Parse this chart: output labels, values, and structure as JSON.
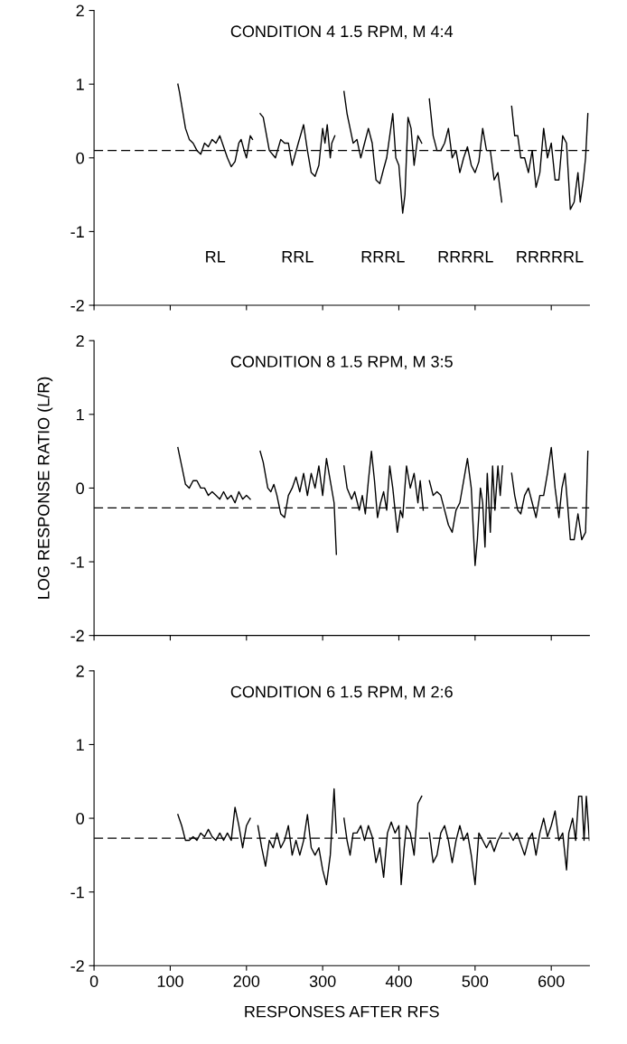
{
  "chart_data": [
    {
      "type": "line",
      "title": "CONDITION 4 1.5 RPM, M 4:4",
      "xlim": [
        0,
        650
      ],
      "ylim": [
        -2,
        2
      ],
      "yticks": [
        -2,
        -1,
        0,
        1,
        2
      ],
      "xticks": [
        0,
        100,
        200,
        300,
        400,
        500,
        600
      ],
      "tick_labels": "y",
      "line_style": "solid",
      "series": [
        {
          "color": "#000000",
          "x": [
            110,
            112,
            120,
            125,
            130,
            135,
            140,
            145,
            150,
            155,
            160,
            165,
            170,
            175,
            180,
            185,
            190,
            193,
            197,
            200,
            205,
            208,
            212,
            218,
            222,
            230,
            238,
            245,
            250,
            255,
            260,
            268,
            275,
            280,
            285,
            290,
            295,
            300,
            303,
            306,
            310,
            312,
            316,
            322,
            328,
            332,
            336,
            340,
            345,
            350,
            355,
            360,
            365,
            370,
            375,
            380,
            384,
            388,
            392,
            396,
            400,
            405,
            408,
            412,
            416,
            420,
            425,
            430,
            435,
            440,
            445,
            450,
            455,
            460,
            465,
            470,
            475,
            480,
            485,
            490,
            495,
            500,
            505,
            510,
            515,
            520,
            525,
            530,
            535,
            542,
            548,
            552,
            556,
            560,
            565,
            570,
            575,
            580,
            585,
            590,
            595,
            600,
            605,
            610,
            615,
            620,
            625,
            630,
            635,
            638,
            642,
            645,
            648
          ],
          "values": [
            1.0,
            0.9,
            0.4,
            0.25,
            0.2,
            0.1,
            0.05,
            0.2,
            0.15,
            0.25,
            0.2,
            0.3,
            0.15,
            0.0,
            -0.12,
            -0.05,
            0.2,
            0.25,
            0.1,
            0.0,
            0.3,
            0.25,
            null,
            0.6,
            0.55,
            0.1,
            0.0,
            0.25,
            0.2,
            0.2,
            -0.1,
            0.2,
            0.45,
            0.1,
            -0.2,
            -0.25,
            -0.1,
            0.4,
            0.2,
            0.45,
            0.0,
            0.2,
            0.3,
            null,
            0.9,
            0.6,
            0.4,
            0.2,
            0.25,
            0.0,
            0.2,
            0.4,
            0.2,
            -0.3,
            -0.35,
            -0.15,
            0.0,
            0.3,
            0.6,
            0.0,
            -0.1,
            -0.75,
            -0.5,
            0.55,
            0.4,
            -0.1,
            0.3,
            0.2,
            null,
            0.8,
            0.3,
            0.1,
            0.1,
            0.2,
            0.4,
            0.0,
            0.1,
            -0.2,
            0.0,
            0.15,
            -0.1,
            -0.2,
            -0.05,
            0.4,
            0.1,
            0.1,
            -0.3,
            -0.2,
            -0.6,
            null,
            0.7,
            0.3,
            0.3,
            0.0,
            0.0,
            -0.2,
            0.1,
            -0.4,
            -0.2,
            0.4,
            0.0,
            0.2,
            -0.3,
            -0.3,
            0.3,
            0.2,
            -0.7,
            -0.6,
            -0.2,
            -0.6,
            -0.3,
            0.0,
            0.6
          ]
        }
      ],
      "ref_lines": [
        {
          "axis": "y",
          "value": 0.1,
          "color": "#000000",
          "line_style": "dashed"
        }
      ],
      "annotations": [
        "RL",
        "RRL",
        "RRRL",
        "RRRRL",
        "RRRRRL"
      ]
    },
    {
      "type": "line",
      "title": "CONDITION 8 1.5 RPM, M 3:5",
      "ylabel": "LOG RESPONSE RATIO (L/R)",
      "xlim": [
        0,
        650
      ],
      "ylim": [
        -2,
        2
      ],
      "yticks": [
        -2,
        -1,
        0,
        1,
        2
      ],
      "xticks": [
        0,
        100,
        200,
        300,
        400,
        500,
        600
      ],
      "tick_labels": "y",
      "line_style": "solid",
      "series": [
        {
          "color": "#000000",
          "x": [
            110,
            115,
            120,
            125,
            130,
            135,
            140,
            145,
            150,
            155,
            160,
            165,
            170,
            175,
            180,
            185,
            190,
            195,
            200,
            205,
            212,
            218,
            222,
            228,
            232,
            236,
            240,
            245,
            250,
            255,
            260,
            265,
            270,
            275,
            280,
            285,
            290,
            295,
            300,
            305,
            310,
            315,
            318,
            322,
            328,
            332,
            338,
            342,
            348,
            352,
            356,
            360,
            364,
            368,
            372,
            376,
            380,
            384,
            388,
            392,
            395,
            398,
            402,
            405,
            410,
            415,
            420,
            425,
            428,
            432,
            436,
            440,
            445,
            450,
            455,
            460,
            465,
            470,
            475,
            480,
            485,
            490,
            495,
            500,
            503,
            507,
            510,
            513,
            516,
            520,
            523,
            526,
            530,
            533,
            536,
            542,
            548,
            552,
            556,
            560,
            565,
            570,
            575,
            580,
            585,
            590,
            595,
            600,
            605,
            610,
            614,
            618,
            622,
            625,
            630,
            635,
            640,
            645,
            648
          ],
          "values": [
            0.55,
            0.3,
            0.05,
            0.0,
            0.1,
            0.1,
            0.0,
            0.0,
            -0.1,
            -0.05,
            -0.1,
            -0.15,
            -0.05,
            -0.15,
            -0.1,
            -0.2,
            -0.05,
            -0.15,
            -0.1,
            -0.15,
            null,
            0.5,
            0.35,
            0.0,
            -0.05,
            0.05,
            -0.1,
            -0.35,
            -0.4,
            -0.1,
            0.0,
            0.15,
            -0.05,
            0.2,
            -0.1,
            0.2,
            0.0,
            0.3,
            -0.1,
            0.4,
            0.1,
            -0.2,
            -0.9,
            null,
            0.3,
            0.0,
            -0.15,
            -0.05,
            -0.3,
            -0.1,
            -0.35,
            0.1,
            0.5,
            0.1,
            -0.4,
            -0.2,
            -0.05,
            -0.3,
            0.3,
            0.0,
            -0.3,
            -0.6,
            -0.3,
            -0.4,
            0.3,
            0.0,
            0.2,
            -0.2,
            0.1,
            -0.3,
            null,
            0.1,
            -0.1,
            -0.05,
            -0.1,
            -0.3,
            -0.5,
            -0.6,
            -0.3,
            -0.2,
            0.1,
            0.4,
            0.0,
            -1.05,
            -0.7,
            0.0,
            -0.2,
            -0.8,
            0.2,
            -0.6,
            0.3,
            -0.3,
            0.3,
            -0.1,
            0.3,
            null,
            0.2,
            -0.1,
            -0.3,
            -0.35,
            -0.1,
            0.0,
            -0.2,
            -0.4,
            -0.1,
            -0.1,
            0.2,
            0.55,
            0.0,
            -0.4,
            0.0,
            0.2,
            -0.3,
            -0.7,
            -0.7,
            -0.35,
            -0.7,
            -0.6,
            0.5
          ]
        }
      ],
      "ref_lines": [
        {
          "axis": "y",
          "value": -0.27,
          "color": "#000000",
          "line_style": "dashed"
        }
      ]
    },
    {
      "type": "line",
      "title": "CONDITION 6 1.5 RPM, M 2:6",
      "xlabel": "RESPONSES AFTER RFS",
      "xlim": [
        0,
        650
      ],
      "ylim": [
        -2,
        2
      ],
      "yticks": [
        -2,
        -1,
        0,
        1,
        2
      ],
      "xticks": [
        0,
        100,
        200,
        300,
        400,
        500,
        600
      ],
      "line_style": "solid",
      "series": [
        {
          "color": "#000000",
          "x": [
            110,
            115,
            120,
            125,
            130,
            135,
            140,
            145,
            150,
            155,
            160,
            165,
            170,
            175,
            180,
            185,
            190,
            195,
            200,
            205,
            210,
            215,
            220,
            225,
            230,
            235,
            240,
            245,
            250,
            255,
            260,
            265,
            270,
            275,
            280,
            285,
            290,
            295,
            300,
            305,
            310,
            315,
            318,
            322,
            328,
            332,
            336,
            340,
            345,
            350,
            355,
            360,
            365,
            370,
            375,
            380,
            385,
            390,
            395,
            400,
            403,
            407,
            410,
            415,
            420,
            425,
            430,
            435,
            440,
            445,
            450,
            455,
            460,
            465,
            470,
            475,
            480,
            485,
            490,
            495,
            500,
            505,
            510,
            515,
            520,
            525,
            530,
            535,
            540,
            545,
            550,
            555,
            560,
            565,
            570,
            575,
            580,
            585,
            590,
            595,
            600,
            605,
            610,
            615,
            620,
            623,
            628,
            632,
            636,
            640,
            643,
            646,
            650
          ],
          "values": [
            0.05,
            -0.1,
            -0.3,
            -0.3,
            -0.25,
            -0.3,
            -0.2,
            -0.25,
            -0.15,
            -0.25,
            -0.3,
            -0.2,
            -0.3,
            -0.2,
            -0.3,
            0.15,
            -0.1,
            -0.4,
            -0.1,
            0.0,
            null,
            -0.1,
            -0.4,
            -0.65,
            -0.3,
            -0.4,
            -0.2,
            -0.4,
            -0.3,
            -0.1,
            -0.5,
            -0.3,
            -0.5,
            -0.3,
            0.05,
            -0.4,
            -0.5,
            -0.4,
            -0.7,
            -0.9,
            -0.5,
            0.4,
            -0.2,
            null,
            0.0,
            -0.3,
            -0.5,
            -0.2,
            -0.2,
            -0.1,
            -0.3,
            -0.1,
            -0.25,
            -0.6,
            -0.4,
            -0.8,
            -0.2,
            -0.05,
            -0.2,
            -0.1,
            -0.9,
            -0.4,
            -0.1,
            -0.2,
            -0.5,
            0.2,
            0.3,
            null,
            -0.2,
            -0.6,
            -0.5,
            -0.2,
            -0.1,
            -0.3,
            -0.6,
            -0.3,
            -0.1,
            -0.3,
            -0.2,
            -0.5,
            -0.9,
            -0.2,
            -0.3,
            -0.4,
            -0.3,
            -0.45,
            -0.3,
            -0.2,
            null,
            -0.2,
            -0.3,
            -0.2,
            -0.35,
            -0.5,
            -0.3,
            -0.2,
            -0.5,
            -0.2,
            0.0,
            -0.25,
            -0.1,
            0.1,
            -0.3,
            -0.2,
            -0.7,
            -0.2,
            0.0,
            -0.3,
            0.3,
            0.3,
            -0.3,
            0.3,
            -0.3
          ]
        }
      ],
      "ref_lines": [
        {
          "axis": "y",
          "value": -0.27,
          "color": "#000000",
          "line_style": "dashed"
        }
      ]
    }
  ]
}
